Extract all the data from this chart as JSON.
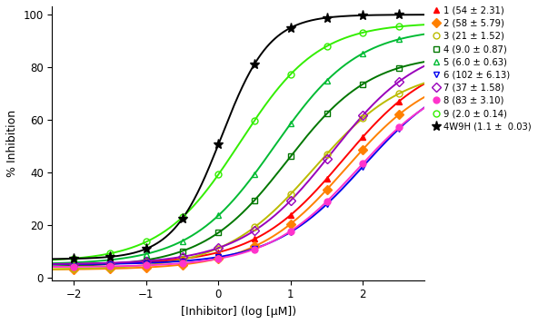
{
  "series": [
    {
      "label": "1 (54 ± 2.31)",
      "ic50_log": 1.732,
      "hill": 0.7,
      "top": 85,
      "bottom": 5,
      "color": "#ff0000",
      "marker": "^",
      "fillstyle": "full",
      "markersize": 5
    },
    {
      "label": "2 (58 ± 5.79)",
      "ic50_log": 1.763,
      "hill": 0.7,
      "top": 80,
      "bottom": 3,
      "color": "#ff8000",
      "marker": "D",
      "fillstyle": "full",
      "markersize": 5
    },
    {
      "label": "3 (21 ± 1.52)",
      "ic50_log": 1.322,
      "hill": 0.7,
      "top": 80,
      "bottom": 3,
      "color": "#bbbb00",
      "marker": "o",
      "fillstyle": "none",
      "markersize": 5
    },
    {
      "label": "4 (9.0 ± 0.87)",
      "ic50_log": 0.954,
      "hill": 0.75,
      "top": 85,
      "bottom": 4,
      "color": "#007700",
      "marker": "s",
      "fillstyle": "none",
      "markersize": 5
    },
    {
      "label": "5 (6.0 ± 0.63)",
      "ic50_log": 0.778,
      "hill": 0.75,
      "top": 95,
      "bottom": 5,
      "color": "#00bb33",
      "marker": "^",
      "fillstyle": "none",
      "markersize": 5
    },
    {
      "label": "6 (102 ± 6.13)",
      "ic50_log": 2.009,
      "hill": 0.7,
      "top": 80,
      "bottom": 5,
      "color": "#0000ee",
      "marker": "v",
      "fillstyle": "none",
      "markersize": 5
    },
    {
      "label": "7 (37 ± 1.58)",
      "ic50_log": 1.568,
      "hill": 0.7,
      "top": 90,
      "bottom": 5,
      "color": "#9900bb",
      "marker": "D",
      "fillstyle": "none",
      "markersize": 5
    },
    {
      "label": "8 (83 ± 3.10)",
      "ic50_log": 1.919,
      "hill": 0.7,
      "top": 78,
      "bottom": 4,
      "color": "#ff33cc",
      "marker": "o",
      "fillstyle": "full",
      "markersize": 5
    },
    {
      "label": "9 (2.0 ± 0.14)",
      "ic50_log": 0.301,
      "hill": 0.8,
      "top": 97,
      "bottom": 6,
      "color": "#33ee00",
      "marker": "o",
      "fillstyle": "none",
      "markersize": 5
    },
    {
      "label": "4W9H (1.1 ±  0.03)",
      "ic50_log": 0.041,
      "hill": 1.3,
      "top": 100,
      "bottom": 7,
      "color": "#000000",
      "marker": "*",
      "fillstyle": "full",
      "markersize": 8
    }
  ],
  "xmin": -2.3,
  "xmax": 2.85,
  "ymin": -1,
  "ymax": 103,
  "xlabel": "[Inhibitor] (log [μM])",
  "ylabel": "% Inhibition",
  "xticks": [
    -2,
    -1,
    0,
    1,
    2
  ],
  "yticks": [
    0,
    20,
    40,
    60,
    80,
    100
  ],
  "data_x": [
    -2.0,
    -1.5,
    -1.0,
    -0.5,
    0.0,
    0.5,
    1.0,
    1.5,
    2.0,
    2.5
  ],
  "background_color": "#ffffff",
  "figwidth": 5.92,
  "figheight": 3.57,
  "dpi": 100
}
